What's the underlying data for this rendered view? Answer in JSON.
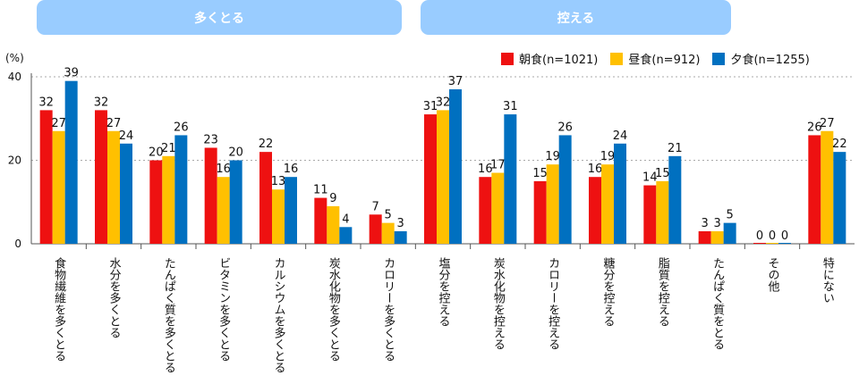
{
  "groups": [
    {
      "label": "多くとる",
      "color": "#99ccff"
    },
    {
      "label": "控える",
      "color": "#99ccff"
    }
  ],
  "colors": {
    "series": [
      "#ee1111",
      "#ffc000",
      "#0070c0"
    ]
  },
  "chart_data": {
    "type": "bar",
    "ylabel": "(%)",
    "ylim": [
      0,
      40
    ],
    "yticks": [
      0,
      20,
      40
    ],
    "categories": [
      "食物繊維を多くとる",
      "水分を多くとる",
      "たんぱく質を多くとる",
      "ビタミンを多くとる",
      "カルシウムを多くとる",
      "炭水化物を多くとる",
      "カロリーを多くとる",
      "塩分を控える",
      "炭水化物を控える",
      "カロリーを控える",
      "糖分を控える",
      "脂質を控える",
      "たんぱく質をとる",
      "その他",
      "特にない"
    ],
    "series": [
      {
        "name": "朝食(n=1021)",
        "values": [
          32,
          32,
          20,
          23,
          22,
          11,
          7,
          31,
          16,
          15,
          16,
          14,
          3,
          0,
          26
        ]
      },
      {
        "name": "昼食(n=912)",
        "values": [
          27,
          27,
          21,
          16,
          13,
          9,
          5,
          32,
          17,
          19,
          19,
          15,
          3,
          0,
          27
        ]
      },
      {
        "name": "夕食(n=1255)",
        "values": [
          39,
          24,
          26,
          20,
          16,
          4,
          3,
          37,
          31,
          26,
          24,
          21,
          5,
          0,
          22
        ]
      }
    ]
  }
}
